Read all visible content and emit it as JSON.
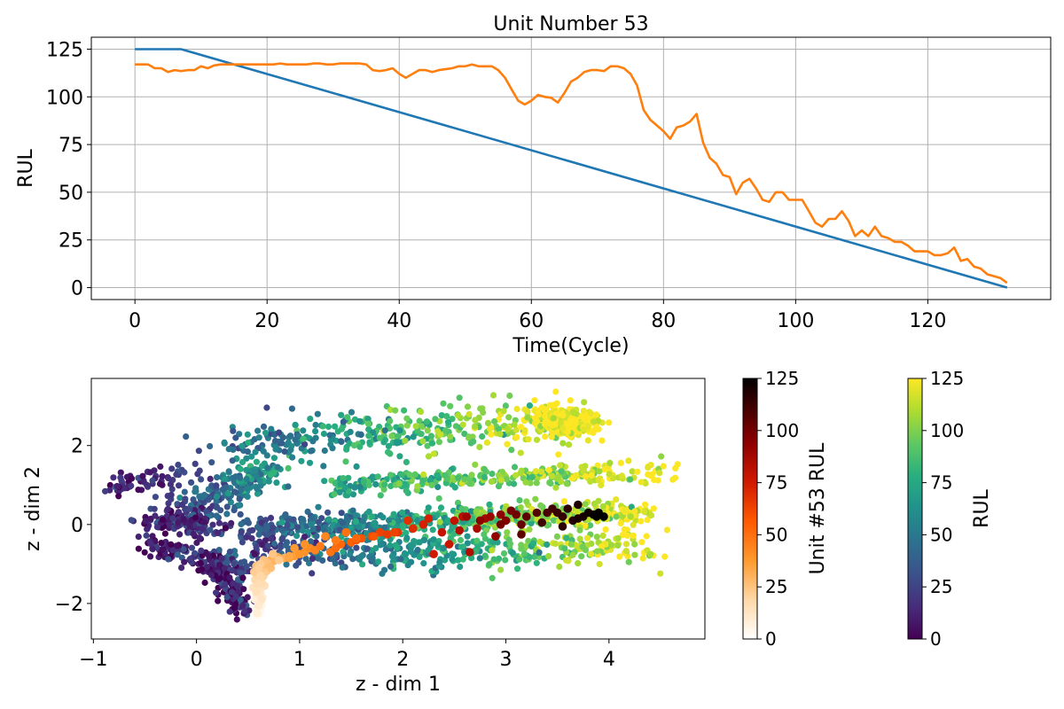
{
  "chart_data": [
    {
      "type": "line",
      "title": "Unit Number 53",
      "xlabel": "Time(Cycle)",
      "ylabel": "RUL",
      "xlim": [
        -6.6,
        138.6
      ],
      "ylim": [
        -6.25,
        131.25
      ],
      "xticks": [
        0,
        20,
        40,
        60,
        80,
        100,
        120
      ],
      "yticks": [
        0,
        25,
        50,
        75,
        100,
        125
      ],
      "grid": true,
      "series": [
        {
          "color": "#1f77b4",
          "x": [
            0,
            7,
            132
          ],
          "y": [
            125,
            125,
            0
          ]
        },
        {
          "color": "#ff7f0e",
          "x": [
            0,
            1,
            2,
            3,
            4,
            5,
            6,
            7,
            8,
            9,
            10,
            11,
            12,
            13,
            14,
            15,
            16,
            17,
            18,
            19,
            20,
            21,
            22,
            23,
            24,
            25,
            26,
            27,
            28,
            29,
            30,
            31,
            32,
            33,
            34,
            35,
            36,
            37,
            38,
            39,
            40,
            41,
            42,
            43,
            44,
            45,
            46,
            47,
            48,
            49,
            50,
            51,
            52,
            53,
            54,
            55,
            56,
            57,
            58,
            59,
            60,
            61,
            62,
            63,
            64,
            65,
            66,
            67,
            68,
            69,
            70,
            71,
            72,
            73,
            74,
            75,
            76,
            77,
            78,
            79,
            80,
            81,
            82,
            83,
            84,
            85,
            86,
            87,
            88,
            89,
            90,
            91,
            92,
            93,
            94,
            95,
            96,
            97,
            98,
            99,
            100,
            101,
            102,
            103,
            104,
            105,
            106,
            107,
            108,
            109,
            110,
            111,
            112,
            113,
            114,
            115,
            116,
            117,
            118,
            119,
            120,
            121,
            122,
            123,
            124,
            125,
            126,
            127,
            128,
            129,
            130,
            131,
            132
          ],
          "y": [
            117,
            117,
            117,
            115,
            115,
            113,
            114,
            113.5,
            114,
            114,
            116,
            115,
            116.5,
            117,
            117,
            117,
            117,
            117,
            117,
            117,
            117,
            117,
            117.5,
            117,
            117,
            117,
            117,
            117.5,
            117.5,
            117,
            117,
            117.5,
            117.5,
            117.5,
            117.5,
            117,
            114,
            113.5,
            114,
            115,
            112,
            110,
            112,
            114,
            114,
            113,
            114,
            114.5,
            115,
            116,
            116,
            117,
            116,
            116,
            116,
            114,
            110,
            104,
            98,
            96,
            98,
            101,
            100,
            99.5,
            97,
            102,
            108,
            110,
            113,
            114,
            114,
            113.5,
            116,
            116,
            115,
            112,
            106,
            93,
            88,
            85,
            82,
            78,
            84,
            85,
            87,
            91,
            76,
            68,
            65,
            59,
            58,
            49,
            55,
            57,
            52,
            46,
            45,
            50,
            50,
            46,
            46,
            46,
            40,
            34,
            32,
            36,
            36,
            40,
            35,
            27,
            30,
            27,
            32,
            27,
            26,
            24,
            24,
            22,
            19,
            19,
            19,
            17,
            17,
            18,
            21,
            14,
            15,
            11,
            10,
            7,
            6,
            5,
            2.5
          ]
        }
      ]
    },
    {
      "type": "scatter",
      "xlabel": "z - dim 1",
      "ylabel": "z - dim 2",
      "xlim": [
        -1.02,
        4.93
      ],
      "ylim": [
        -2.9,
        3.7
      ],
      "xticks": [
        -1,
        0,
        1,
        2,
        3,
        4
      ],
      "yticks": [
        -2,
        0,
        2
      ],
      "grid": false,
      "background_points": {
        "colormap": "viridis",
        "clusters": [
          {
            "x0": 0.45,
            "y0": -0.1,
            "x1": 4.35,
            "y1": 0.3,
            "rul0": 30,
            "rul1": 125,
            "spread": 0.16,
            "n": 650
          },
          {
            "x0": 0.55,
            "y0": -0.7,
            "x1": 4.4,
            "y1": -0.6,
            "rul0": 20,
            "rul1": 125,
            "spread": 0.22,
            "n": 420
          },
          {
            "x0": 1.3,
            "y0": 1.0,
            "x1": 4.55,
            "y1": 1.35,
            "rul0": 70,
            "rul1": 125,
            "spread": 0.14,
            "n": 320
          },
          {
            "x0": 0.3,
            "y0": 2.0,
            "x1": 3.6,
            "y1": 2.6,
            "rul0": 40,
            "rul1": 125,
            "spread": 0.32,
            "n": 380
          },
          {
            "x0": -0.2,
            "y0": 0.2,
            "x1": 0.7,
            "y1": 1.4,
            "rul0": 15,
            "rul1": 70,
            "spread": 0.25,
            "n": 230
          },
          {
            "x0": -0.75,
            "y0": 0.9,
            "x1": -0.1,
            "y1": 1.3,
            "rul0": 5,
            "rul1": 30,
            "spread": 0.15,
            "n": 70
          },
          {
            "x0": -0.5,
            "y0": 0.1,
            "x1": 0.2,
            "y1": -0.1,
            "rul0": 5,
            "rul1": 20,
            "spread": 0.12,
            "n": 110
          },
          {
            "x0": -0.45,
            "y0": -0.5,
            "x1": 0.5,
            "y1": -1.2,
            "rul0": 5,
            "rul1": 30,
            "spread": 0.15,
            "n": 170
          },
          {
            "x0": 0.15,
            "y0": -1.1,
            "x1": 0.45,
            "y1": -2.2,
            "rul0": 2,
            "rul1": 15,
            "spread": 0.12,
            "n": 110
          },
          {
            "x0": 3.4,
            "y0": 2.6,
            "x1": 3.75,
            "y1": 2.6,
            "rul0": 125,
            "rul1": 125,
            "spread": 0.18,
            "n": 260
          }
        ]
      },
      "unit_points": {
        "colormap": "gist_heat_r",
        "x": [
          0.6,
          0.62,
          0.58,
          0.63,
          0.6,
          0.57,
          0.64,
          0.61,
          0.58,
          0.62,
          0.6,
          0.55,
          0.66,
          0.59,
          0.63,
          0.57,
          0.61,
          0.65,
          0.6,
          0.56,
          0.68,
          0.62,
          0.58,
          0.72,
          0.66,
          0.7,
          0.75,
          0.8,
          0.85,
          0.78,
          0.72,
          0.9,
          0.95,
          1.0,
          1.05,
          1.1,
          1.15,
          1.2,
          1.3,
          1.35,
          1.4,
          1.5,
          1.55,
          1.6,
          1.7,
          1.78,
          1.85,
          1.95,
          2.1,
          2.2,
          2.25,
          2.3,
          2.45,
          2.5,
          2.58,
          2.65,
          2.72,
          2.8,
          2.85,
          2.9,
          2.95,
          3.0,
          3.05,
          3.1,
          3.15,
          3.2,
          3.3,
          3.4,
          3.45,
          3.5,
          3.55,
          3.6,
          3.65,
          3.7,
          3.75,
          3.8,
          3.85,
          3.9,
          3.95,
          3.88,
          3.7,
          3.55,
          3.35,
          3.15,
          2.95,
          2.75,
          2.62,
          2.55,
          2.38,
          2.2,
          2.05,
          1.92,
          1.72,
          1.55,
          1.45,
          1.35,
          1.25,
          1.05,
          0.95,
          0.9,
          0.8,
          0.76,
          0.7,
          0.68,
          0.65,
          0.74,
          0.8,
          0.62,
          0.6,
          0.62,
          0.6,
          0.58,
          0.63,
          0.6,
          0.59
        ],
        "y": [
          -2.3,
          -2.2,
          -2.15,
          -2.05,
          -1.95,
          -1.9,
          -1.85,
          -1.8,
          -1.75,
          -1.7,
          -1.65,
          -1.6,
          -1.55,
          -1.5,
          -1.45,
          -1.4,
          -1.35,
          -1.3,
          -1.25,
          -1.2,
          -1.18,
          -1.12,
          -1.05,
          -1.1,
          -1.0,
          -0.95,
          -0.92,
          -0.88,
          -0.85,
          -0.82,
          -0.9,
          -0.85,
          -0.8,
          -0.75,
          -0.7,
          -0.6,
          -0.65,
          -0.55,
          -0.7,
          -0.6,
          -0.5,
          -0.45,
          -0.4,
          -0.35,
          -0.3,
          -0.2,
          -0.25,
          -0.2,
          -0.1,
          0.0,
          0.15,
          -0.75,
          -0.5,
          0.1,
          0.2,
          -0.7,
          -0.1,
          0.15,
          0.2,
          -0.3,
          0.25,
          0.1,
          0.35,
          0.25,
          0.0,
          0.2,
          0.3,
          0.3,
          0.4,
          0.3,
          0.2,
          0.4,
          0.1,
          0.5,
          0.2,
          0.3,
          0.25,
          0.3,
          0.2,
          0.2,
          0.15,
          -0.05,
          0.05,
          -0.25,
          0.0,
          0.1,
          0.2,
          -0.15,
          -0.2,
          0.0,
          0.1,
          -0.2,
          -0.3,
          -0.35,
          -0.2,
          -0.4,
          -0.3,
          -0.5,
          -0.6,
          -0.8,
          -0.85,
          -0.9,
          -1.0,
          -0.95,
          -0.9,
          -0.75,
          -0.9,
          -1.0,
          -1.1,
          -1.3,
          -1.5,
          -1.7,
          -1.9,
          -2.05,
          -2.25
        ],
        "rul": [
          2,
          3,
          4,
          5,
          6,
          7,
          8,
          9,
          10,
          11,
          12,
          13,
          14,
          15,
          16,
          17,
          18,
          19,
          20,
          21,
          22,
          23,
          24,
          25,
          26,
          27,
          28,
          29,
          30,
          31,
          32,
          33,
          35,
          37,
          38,
          40,
          42,
          44,
          46,
          48,
          50,
          52,
          54,
          56,
          58,
          60,
          62,
          64,
          66,
          68,
          70,
          72,
          74,
          76,
          78,
          80,
          82,
          84,
          86,
          88,
          90,
          92,
          94,
          96,
          98,
          100,
          102,
          104,
          106,
          108,
          110,
          112,
          114,
          116,
          118,
          120,
          122,
          124,
          125,
          124,
          118,
          112,
          106,
          100,
          95,
          90,
          85,
          80,
          75,
          70,
          65,
          60,
          55,
          50,
          47,
          44,
          41,
          38,
          35,
          32,
          30,
          28,
          26,
          25,
          24,
          23,
          22,
          21,
          20,
          18,
          16,
          14,
          12,
          10,
          8
        ]
      },
      "colorbars": [
        {
          "label": "Unit #53 RUL",
          "colormap": "gist_heat_r",
          "range": [
            0,
            125
          ],
          "ticks": [
            0,
            25,
            50,
            75,
            100,
            125
          ]
        },
        {
          "label": "RUL",
          "colormap": "viridis",
          "range": [
            0,
            125
          ],
          "ticks": [
            0,
            25,
            50,
            75,
            100,
            125
          ]
        }
      ]
    }
  ]
}
